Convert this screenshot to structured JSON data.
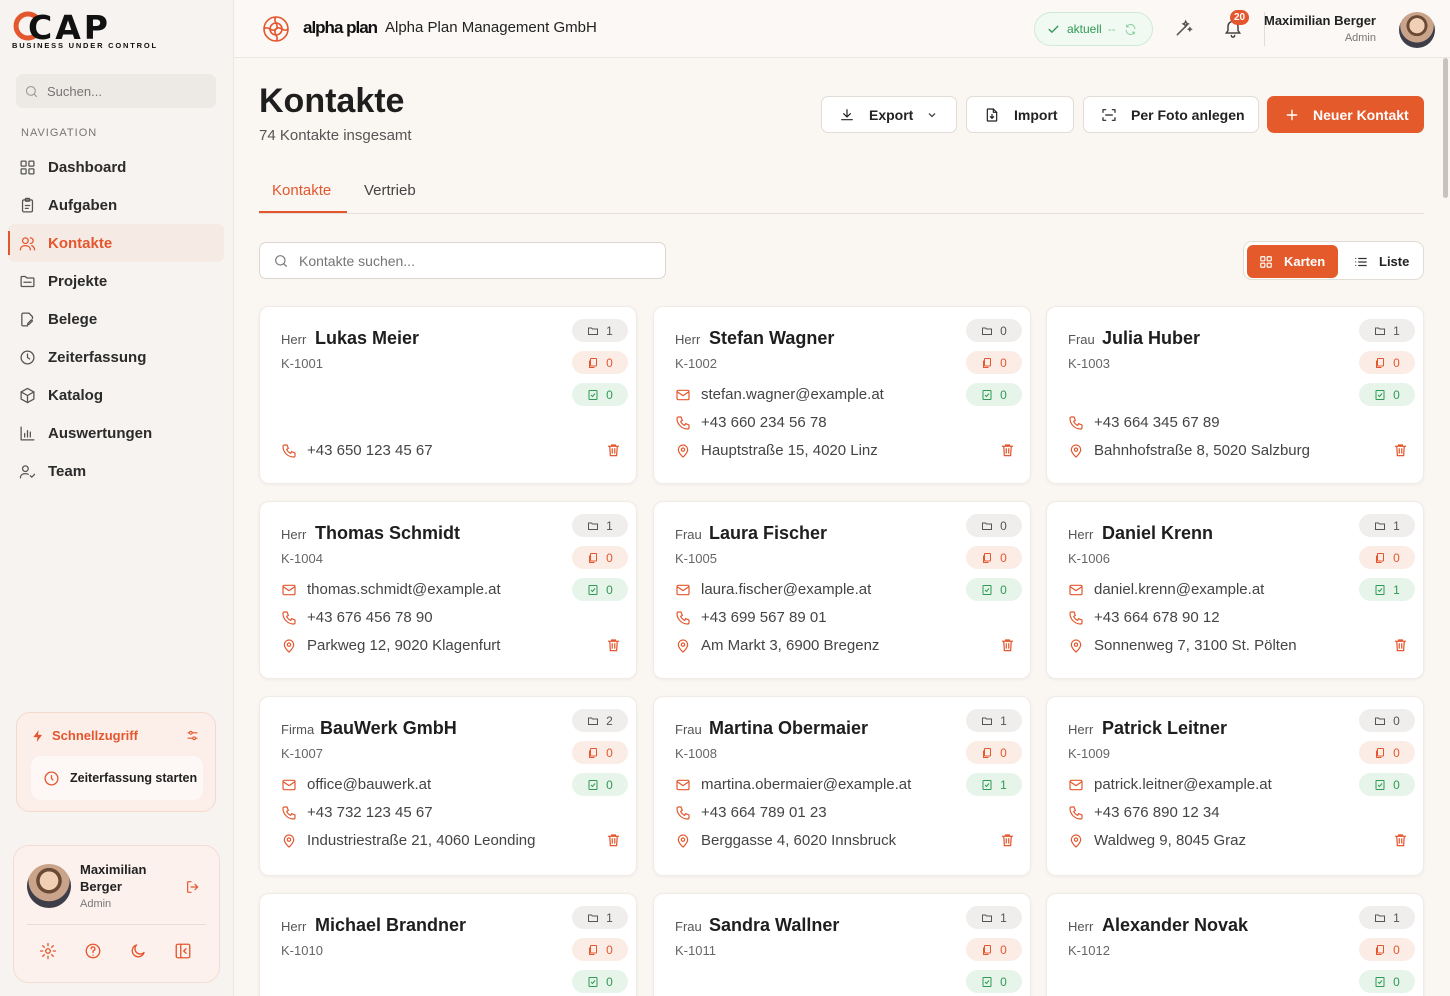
{
  "app": {
    "logo_text": "CAP",
    "logo_tagline": "BUSINESS UNDER CONTROL",
    "brand_logo_text": "alpha plan",
    "company_name": "Alpha Plan Management GmbH",
    "accent_color": "#e55a2b"
  },
  "sidebar": {
    "search_placeholder": "Suchen...",
    "nav_heading": "NAVIGATION",
    "items": [
      {
        "label": "Dashboard",
        "icon": "grid-icon"
      },
      {
        "label": "Aufgaben",
        "icon": "clipboard-icon"
      },
      {
        "label": "Kontakte",
        "icon": "users-icon",
        "active": true
      },
      {
        "label": "Projekte",
        "icon": "folder-icon"
      },
      {
        "label": "Belege",
        "icon": "document-edit-icon"
      },
      {
        "label": "Zeiterfassung",
        "icon": "clock-icon"
      },
      {
        "label": "Katalog",
        "icon": "box-icon"
      },
      {
        "label": "Auswertungen",
        "icon": "bar-chart-icon"
      },
      {
        "label": "Team",
        "icon": "team-icon"
      }
    ],
    "quick_access": {
      "title": "Schnellzugriff",
      "action_label": "Zeiterfassung starten"
    },
    "user": {
      "name": "Maximilian Berger",
      "role": "Admin"
    }
  },
  "topbar": {
    "status_label": "aktuell",
    "status_dash": "--",
    "notifications_count": "20",
    "user_name": "Maximilian Berger",
    "user_role": "Admin"
  },
  "main": {
    "title": "Kontakte",
    "subtitle": "74 Kontakte insgesamt",
    "buttons": {
      "export": "Export",
      "import": "Import",
      "photo": "Per Foto anlegen",
      "new_contact": "Neuer Kontakt"
    },
    "tabs": [
      "Kontakte",
      "Vertrieb"
    ],
    "search_placeholder": "Kontakte suchen...",
    "view_toggle": {
      "cards": "Karten",
      "list": "Liste"
    }
  },
  "contacts": [
    {
      "salutation": "Herr",
      "name": "Lukas Meier",
      "id": "K-1001",
      "projects": "1",
      "documents": "0",
      "tasks": "0",
      "email": "",
      "phone": "+43 650 123 45 67",
      "address": ""
    },
    {
      "salutation": "Herr",
      "name": "Stefan Wagner",
      "id": "K-1002",
      "projects": "0",
      "documents": "0",
      "tasks": "0",
      "email": "stefan.wagner@example.at",
      "phone": "+43 660 234 56 78",
      "address": "Hauptstraße 15, 4020 Linz"
    },
    {
      "salutation": "Frau",
      "name": "Julia Huber",
      "id": "K-1003",
      "projects": "1",
      "documents": "0",
      "tasks": "0",
      "email": "",
      "phone": "+43 664 345 67 89",
      "address": "Bahnhofstraße 8, 5020 Salzburg"
    },
    {
      "salutation": "Herr",
      "name": "Thomas Schmidt",
      "id": "K-1004",
      "projects": "1",
      "documents": "0",
      "tasks": "0",
      "email": "thomas.schmidt@example.at",
      "phone": "+43 676 456 78 90",
      "address": "Parkweg 12, 9020 Klagenfurt"
    },
    {
      "salutation": "Frau",
      "name": "Laura Fischer",
      "id": "K-1005",
      "projects": "0",
      "documents": "0",
      "tasks": "0",
      "email": "laura.fischer@example.at",
      "phone": "+43 699 567 89 01",
      "address": "Am Markt 3, 6900 Bregenz"
    },
    {
      "salutation": "Herr",
      "name": "Daniel Krenn",
      "id": "K-1006",
      "projects": "1",
      "documents": "0",
      "tasks": "1",
      "email": "daniel.krenn@example.at",
      "phone": "+43 664 678 90 12",
      "address": "Sonnenweg 7, 3100 St. Pölten"
    },
    {
      "salutation": "Firma",
      "name": "BauWerk GmbH",
      "id": "K-1007",
      "projects": "2",
      "documents": "0",
      "tasks": "0",
      "email": "office@bauwerk.at",
      "phone": "+43 732 123 45 67",
      "address": "Industriestraße 21, 4060 Leonding"
    },
    {
      "salutation": "Frau",
      "name": "Martina Obermaier",
      "id": "K-1008",
      "projects": "1",
      "documents": "0",
      "tasks": "1",
      "email": "martina.obermaier@example.at",
      "phone": "+43 664 789 01 23",
      "address": "Berggasse 4, 6020 Innsbruck"
    },
    {
      "salutation": "Herr",
      "name": "Patrick Leitner",
      "id": "K-1009",
      "projects": "0",
      "documents": "0",
      "tasks": "0",
      "email": "patrick.leitner@example.at",
      "phone": "+43 676 890 12 34",
      "address": "Waldweg 9, 8045 Graz"
    },
    {
      "salutation": "Herr",
      "name": "Michael Brandner",
      "id": "K-1010",
      "projects": "1",
      "documents": "0",
      "tasks": "0",
      "email": "",
      "phone": "",
      "address": ""
    },
    {
      "salutation": "Frau",
      "name": "Sandra Wallner",
      "id": "K-1011",
      "projects": "1",
      "documents": "0",
      "tasks": "0",
      "email": "",
      "phone": "",
      "address": ""
    },
    {
      "salutation": "Herr",
      "name": "Alexander Novak",
      "id": "K-1012",
      "projects": "1",
      "documents": "0",
      "tasks": "0",
      "email": "",
      "phone": "",
      "address": ""
    }
  ]
}
